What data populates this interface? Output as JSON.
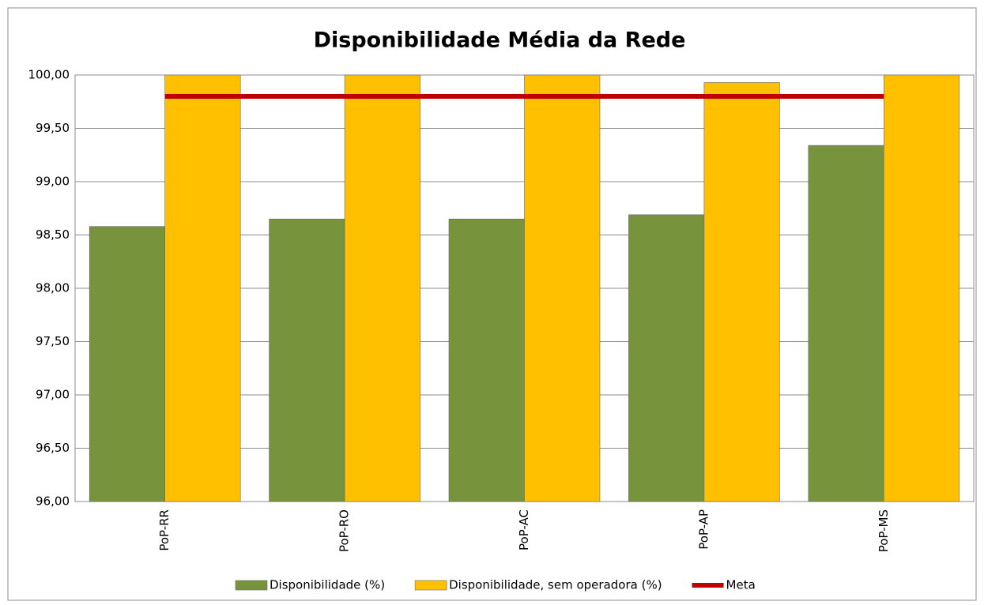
{
  "chart_data": {
    "type": "bar",
    "title": "Disponibilidade Média da Rede",
    "categories": [
      "PoP-RR",
      "PoP-RO",
      "PoP-AC",
      "PoP-AP",
      "PoP-MS"
    ],
    "series": [
      {
        "name": "Disponibilidade (%)",
        "color": "#77933c",
        "values": [
          98.58,
          98.65,
          98.65,
          98.69,
          99.34
        ]
      },
      {
        "name": "Disponibilidade, sem operadora (%)",
        "color": "#ffc000",
        "values": [
          100,
          100,
          100,
          99.93,
          100
        ]
      },
      {
        "name": "Meta",
        "color": "#c00000",
        "type": "line",
        "values": [
          99.8,
          99.8,
          99.8,
          99.8,
          99.8
        ]
      }
    ],
    "ylim": [
      96,
      100
    ],
    "yticks": [
      {
        "value": 96,
        "label": "96,00"
      },
      {
        "value": 96.5,
        "label": "96,50"
      },
      {
        "value": 97,
        "label": "97,00"
      },
      {
        "value": 97.5,
        "label": "97,50"
      },
      {
        "value": 98,
        "label": "98,00"
      },
      {
        "value": 98.5,
        "label": "98,50"
      },
      {
        "value": 99,
        "label": "99,00"
      },
      {
        "value": 99.5,
        "label": "99,50"
      },
      {
        "value": 100,
        "label": "100,00"
      }
    ],
    "grid": true,
    "legend": "bottom"
  }
}
